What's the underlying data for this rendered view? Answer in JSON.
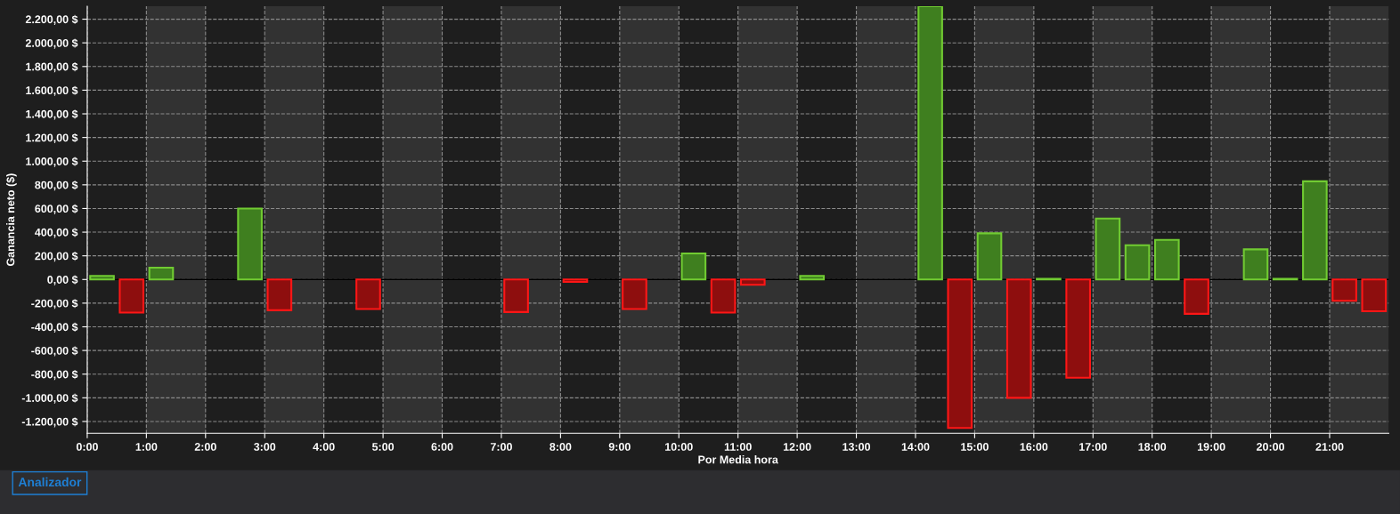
{
  "chart_data": {
    "type": "bar",
    "xlabel": "Por Media hora",
    "ylabel": "Ganancia neto ($)",
    "annotations": [
      "Analizador"
    ],
    "x": [
      0.25,
      0.75,
      1.25,
      1.75,
      2.25,
      2.75,
      3.25,
      3.75,
      4.25,
      4.75,
      5.25,
      5.75,
      6.25,
      6.75,
      7.25,
      7.75,
      8.25,
      8.75,
      9.25,
      9.75,
      10.25,
      10.75,
      11.25,
      11.75,
      12.25,
      12.75,
      13.25,
      13.75,
      14.25,
      14.75,
      15.25,
      15.75,
      16.25,
      16.75,
      17.25,
      17.75,
      18.25,
      18.75,
      19.25,
      19.75,
      20.25,
      20.75,
      21.25,
      21.75
    ],
    "values": [
      30,
      -280,
      100,
      null,
      null,
      600,
      -260,
      null,
      null,
      -250,
      null,
      null,
      null,
      null,
      -275,
      null,
      -20,
      null,
      -250,
      null,
      220,
      -280,
      -45,
      null,
      30,
      null,
      null,
      null,
      2310,
      -1255,
      390,
      -1000,
      5,
      -830,
      515,
      290,
      335,
      -290,
      null,
      255,
      5,
      830,
      -180,
      -268
    ],
    "colors": [
      "#3f7f1f",
      "#8e0e0e",
      "#3f7f1f",
      "#3f7f1f",
      "#3f7f1f",
      "#3f7f1f",
      "#8e0e0e",
      "#3f7f1f",
      "#3f7f1f",
      "#8e0e0e",
      "#3f7f1f",
      "#3f7f1f",
      "#3f7f1f",
      "#3f7f1f",
      "#8e0e0e",
      "#3f7f1f",
      "#8e0e0e",
      "#3f7f1f",
      "#8e0e0e",
      "#3f7f1f",
      "#3f7f1f",
      "#8e0e0e",
      "#8e0e0e",
      "#3f7f1f",
      "#3f7f1f",
      "#3f7f1f",
      "#3f7f1f",
      "#3f7f1f",
      "#3f7f1f",
      "#8e0e0e",
      "#3f7f1f",
      "#8e0e0e",
      "#3f7f1f",
      "#8e0e0e",
      "#3f7f1f",
      "#3f7f1f",
      "#3f7f1f",
      "#8e0e0e",
      "#3f7f1f",
      "#3f7f1f",
      "#3f7f1f",
      "#3f7f1f",
      "#8e0e0e",
      "#8e0e0e"
    ],
    "xlim": [
      0,
      22
    ],
    "xticks": [
      {
        "value": 0,
        "label": "0:00"
      },
      {
        "value": 1,
        "label": "1:00"
      },
      {
        "value": 2,
        "label": "2:00"
      },
      {
        "value": 3,
        "label": "3:00"
      },
      {
        "value": 4,
        "label": "4:00"
      },
      {
        "value": 5,
        "label": "5:00"
      },
      {
        "value": 6,
        "label": "6:00"
      },
      {
        "value": 7,
        "label": "7:00"
      },
      {
        "value": 8,
        "label": "8:00"
      },
      {
        "value": 9,
        "label": "9:00"
      },
      {
        "value": 10,
        "label": "10:00"
      },
      {
        "value": 11,
        "label": "11:00"
      },
      {
        "value": 12,
        "label": "12:00"
      },
      {
        "value": 13,
        "label": "13:00"
      },
      {
        "value": 14,
        "label": "14:00"
      },
      {
        "value": 15,
        "label": "15:00"
      },
      {
        "value": 16,
        "label": "16:00"
      },
      {
        "value": 17,
        "label": "17:00"
      },
      {
        "value": 18,
        "label": "18:00"
      },
      {
        "value": 19,
        "label": "19:00"
      },
      {
        "value": 20,
        "label": "20:00"
      },
      {
        "value": 21,
        "label": "21:00"
      }
    ],
    "ylim": [
      -1300,
      2310
    ],
    "yticks": [
      {
        "value": -1200,
        "label": "-1.200,00 $"
      },
      {
        "value": -1000,
        "label": "-1.000,00 $"
      },
      {
        "value": -800,
        "label": "-800,00 $"
      },
      {
        "value": -600,
        "label": "-600,00 $"
      },
      {
        "value": -400,
        "label": "-400,00 $"
      },
      {
        "value": -200,
        "label": "-200,00 $"
      },
      {
        "value": 0,
        "label": "0,00 $"
      },
      {
        "value": 200,
        "label": "200,00 $"
      },
      {
        "value": 400,
        "label": "400,00 $"
      },
      {
        "value": 600,
        "label": "600,00 $"
      },
      {
        "value": 800,
        "label": "800,00 $"
      },
      {
        "value": 1000,
        "label": "1.000,00 $"
      },
      {
        "value": 1200,
        "label": "1.200,00 $"
      },
      {
        "value": 1400,
        "label": "1.400,00 $"
      },
      {
        "value": 1600,
        "label": "1.600,00 $"
      },
      {
        "value": 1800,
        "label": "1.800,00 $"
      },
      {
        "value": 2000,
        "label": "2.000,00 $"
      },
      {
        "value": 2200,
        "label": "2.200,00 $"
      }
    ],
    "grid": true,
    "ref_lines": [
      {
        "axis": "y",
        "value": 0,
        "color": "#000000",
        "line_style": "solid"
      }
    ],
    "bands": [
      {
        "axis": "x",
        "from": 1,
        "to": 2,
        "color": "#323232"
      },
      {
        "axis": "x",
        "from": 3,
        "to": 4,
        "color": "#323232"
      },
      {
        "axis": "x",
        "from": 5,
        "to": 6,
        "color": "#323232"
      },
      {
        "axis": "x",
        "from": 7,
        "to": 8,
        "color": "#323232"
      },
      {
        "axis": "x",
        "from": 9,
        "to": 10,
        "color": "#323232"
      },
      {
        "axis": "x",
        "from": 11,
        "to": 12,
        "color": "#323232"
      },
      {
        "axis": "x",
        "from": 13,
        "to": 14,
        "color": "#323232"
      },
      {
        "axis": "x",
        "from": 15,
        "to": 16,
        "color": "#323232"
      },
      {
        "axis": "x",
        "from": 17,
        "to": 18,
        "color": "#323232"
      },
      {
        "axis": "x",
        "from": 19,
        "to": 20,
        "color": "#323232"
      },
      {
        "axis": "x",
        "from": 21,
        "to": 22,
        "color": "#323232"
      }
    ]
  }
}
